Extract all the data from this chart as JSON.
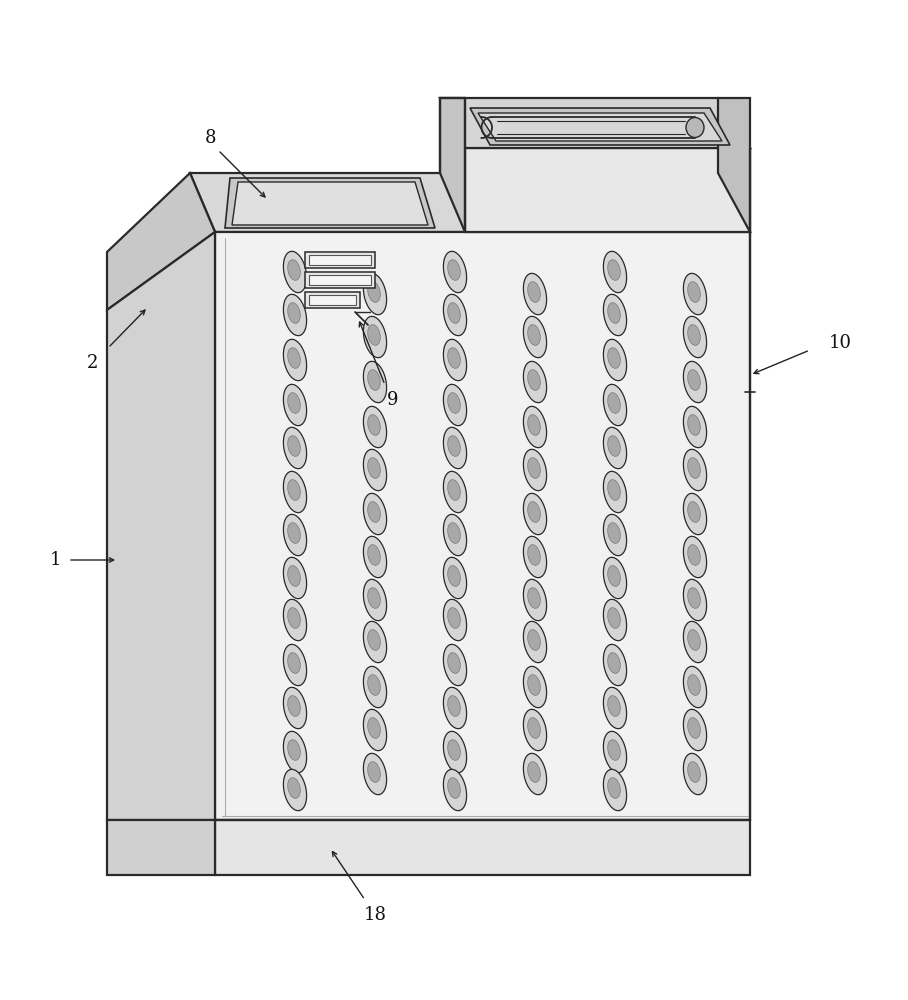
{
  "background_color": "#ffffff",
  "line_color": "#2a2a2a",
  "fill_left": "#d8d8d8",
  "fill_front": "#f0f0f0",
  "fill_top_left": "#e0e0e0",
  "fill_top_right": "#d0d0d0",
  "fill_base": "#e8e8e8",
  "fill_handle_box": "#c8c8c8",
  "fill_slot": "#b0b0b0",
  "fill_slot_inner": "#888888",
  "label_fontsize": 13,
  "lw_main": 1.6,
  "lw_detail": 1.1,
  "lw_leader": 1.0
}
